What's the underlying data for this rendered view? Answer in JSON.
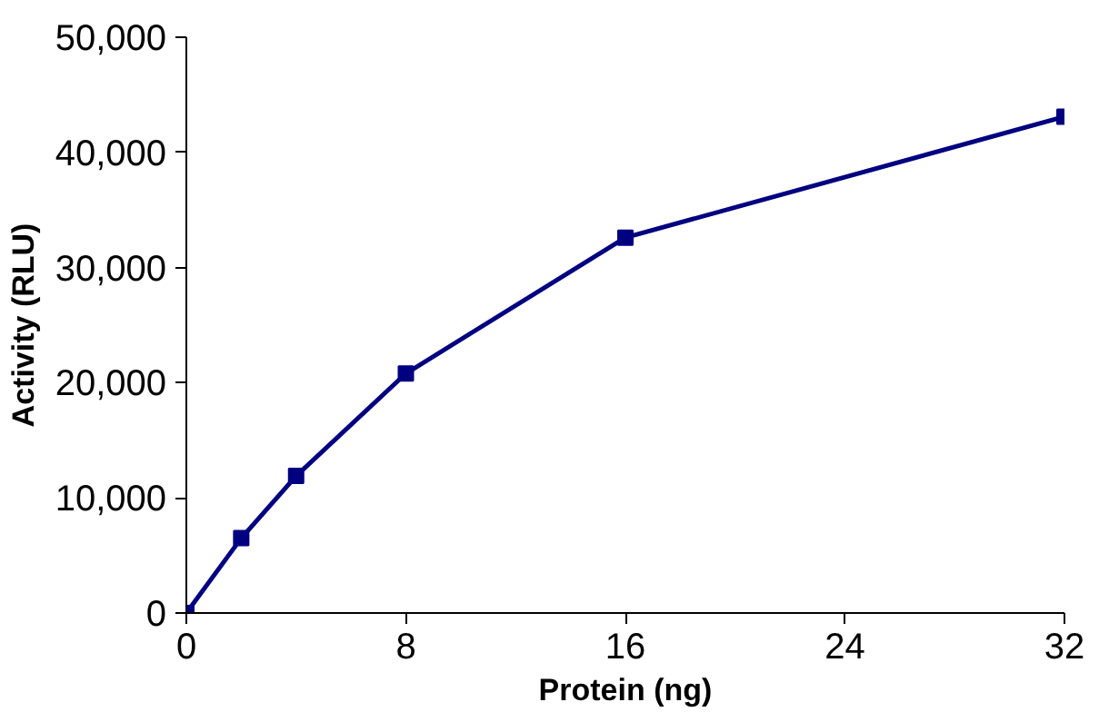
{
  "chart_data": {
    "type": "line",
    "xlabel": "Protein (ng)",
    "ylabel": "Activity (RLU)",
    "x": [
      0,
      2,
      4,
      8,
      16,
      32
    ],
    "series": [
      {
        "color": "#000080",
        "values": [
          0,
          6500,
          11900,
          20800,
          32600,
          43100
        ]
      }
    ],
    "xlim": [
      0,
      32
    ],
    "xticks": [
      0,
      8,
      16,
      24,
      32
    ],
    "ylim": [
      0,
      50000
    ],
    "yticks": [
      {
        "value": 0,
        "label": "0"
      },
      {
        "value": 10000,
        "label": "10,000"
      },
      {
        "value": 20000,
        "label": "20,000"
      },
      {
        "value": 30000,
        "label": "30,000"
      },
      {
        "value": 40000,
        "label": "40,000"
      },
      {
        "value": 50000,
        "label": "50,000"
      }
    ],
    "grid": false,
    "marker": "square",
    "line_style": "solid"
  }
}
